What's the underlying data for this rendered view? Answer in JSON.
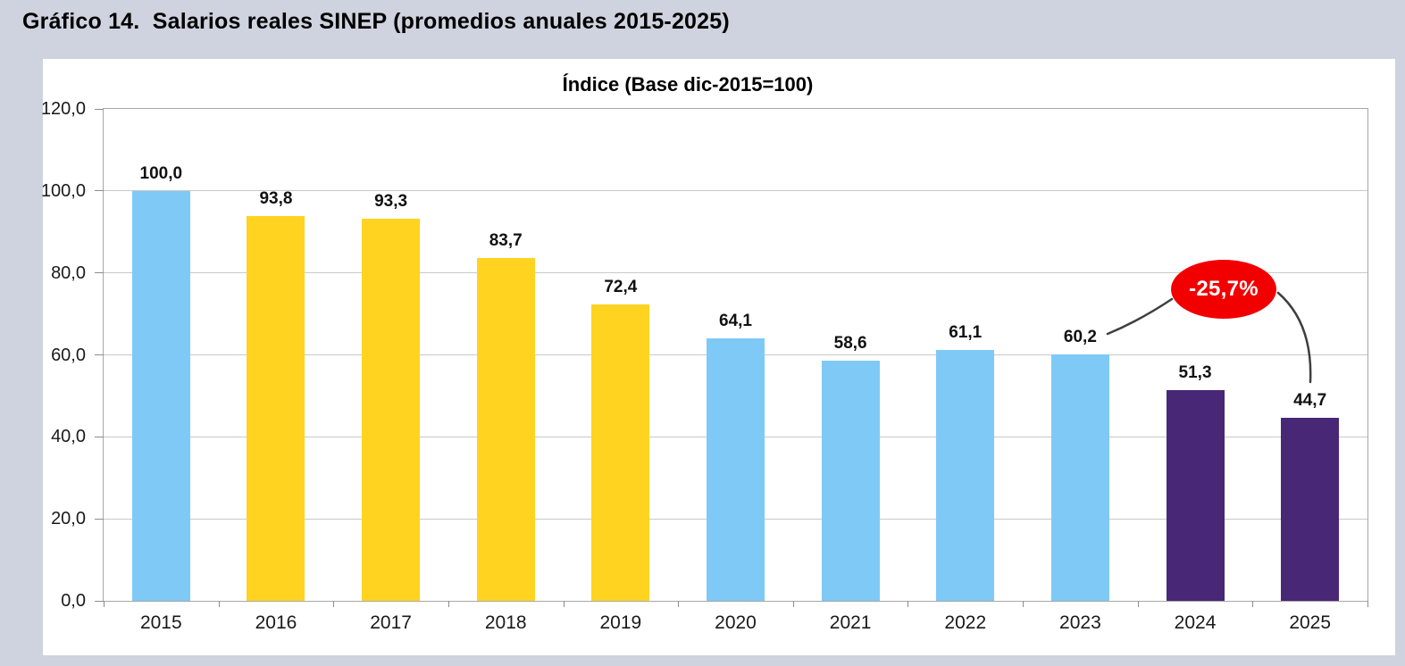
{
  "page": {
    "title": "Gráfico 14.  Salarios reales SINEP (promedios anuales 2015-2025)"
  },
  "chart_data": {
    "type": "bar",
    "title": "Índice (Base dic-2015=100)",
    "categories": [
      "2015",
      "2016",
      "2017",
      "2018",
      "2019",
      "2020",
      "2021",
      "2022",
      "2023",
      "2024",
      "2025"
    ],
    "values": [
      100.0,
      93.8,
      93.3,
      83.7,
      72.4,
      64.1,
      58.6,
      61.1,
      60.2,
      51.3,
      44.7
    ],
    "value_labels": [
      "100,0",
      "93,8",
      "93,3",
      "83,7",
      "72,4",
      "64,1",
      "58,6",
      "61,1",
      "60,2",
      "51,3",
      "44,7"
    ],
    "bar_color_keys": [
      "blue",
      "yellow",
      "yellow",
      "yellow",
      "yellow",
      "blue",
      "blue",
      "blue",
      "blue",
      "purple",
      "purple"
    ],
    "palette": {
      "blue": "#7FC9F6",
      "yellow": "#FFD320",
      "purple": "#482776"
    },
    "xlabel": "",
    "ylabel": "",
    "ylim": [
      0,
      120
    ],
    "ytick_step": 20,
    "ytick_labels": [
      "0,0",
      "20,0",
      "40,0",
      "60,0",
      "80,0",
      "100,0",
      "120,0"
    ],
    "grid": true,
    "legend": "none",
    "annotation": {
      "label": "-25,7%",
      "shape": "ellipse",
      "fill": "#F20000",
      "text_color": "#FFFFFF",
      "connector_color": "#3F3F3F",
      "connects_from": "2023",
      "connects_to": "2025"
    },
    "colors_background": "#CED3DF",
    "panel_background": "#FFFFFF"
  }
}
